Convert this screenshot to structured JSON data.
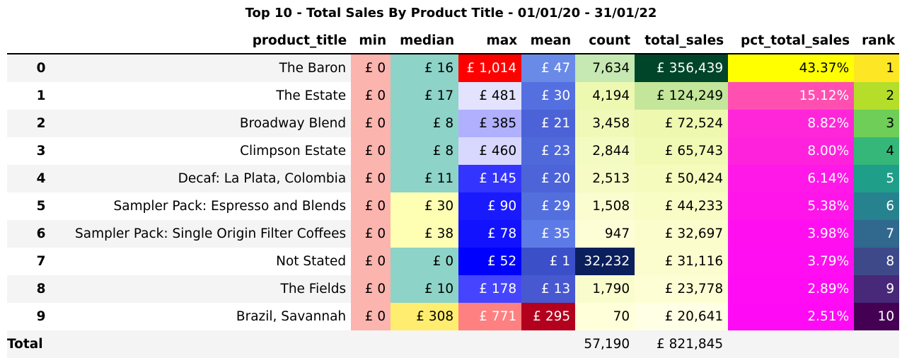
{
  "title": "Top 10 - Total Sales By Product Title - 01/01/20 - 31/01/22",
  "columns": [
    "product_title",
    "min",
    "median",
    "max",
    "mean",
    "count",
    "total_sales",
    "pct_total_sales",
    "rank"
  ],
  "rows": [
    {
      "idx": "0",
      "product_title": "The Baron",
      "min": "£ 0",
      "median": "£ 16",
      "max": "£ 1,014",
      "mean": "£ 47",
      "count": "7,634",
      "total_sales": "£ 356,439",
      "pct_total_sales": "43.37%",
      "rank": "1"
    },
    {
      "idx": "1",
      "product_title": "The Estate",
      "min": "£ 0",
      "median": "£ 17",
      "max": "£ 481",
      "mean": "£ 30",
      "count": "4,194",
      "total_sales": "£ 124,249",
      "pct_total_sales": "15.12%",
      "rank": "2"
    },
    {
      "idx": "2",
      "product_title": "Broadway Blend",
      "min": "£ 0",
      "median": "£ 8",
      "max": "£ 385",
      "mean": "£ 21",
      "count": "3,458",
      "total_sales": "£ 72,524",
      "pct_total_sales": "8.82%",
      "rank": "3"
    },
    {
      "idx": "3",
      "product_title": "Climpson Estate",
      "min": "£ 0",
      "median": "£ 8",
      "max": "£ 460",
      "mean": "£ 23",
      "count": "2,844",
      "total_sales": "£ 65,743",
      "pct_total_sales": "8.00%",
      "rank": "4"
    },
    {
      "idx": "4",
      "product_title": "Decaf: La Plata, Colombia",
      "min": "£ 0",
      "median": "£ 11",
      "max": "£ 145",
      "mean": "£ 20",
      "count": "2,513",
      "total_sales": "£ 50,424",
      "pct_total_sales": "6.14%",
      "rank": "5"
    },
    {
      "idx": "5",
      "product_title": "Sampler Pack: Espresso and Blends",
      "min": "£ 0",
      "median": "£ 30",
      "max": "£ 90",
      "mean": "£ 29",
      "count": "1,508",
      "total_sales": "£ 44,233",
      "pct_total_sales": "5.38%",
      "rank": "6"
    },
    {
      "idx": "6",
      "product_title": "Sampler Pack: Single Origin Filter Coffees",
      "min": "£ 0",
      "median": "£ 38",
      "max": "£ 78",
      "mean": "£ 35",
      "count": "947",
      "total_sales": "£ 32,697",
      "pct_total_sales": "3.98%",
      "rank": "7"
    },
    {
      "idx": "7",
      "product_title": "Not Stated",
      "min": "£ 0",
      "median": "£ 0",
      "max": "£ 52",
      "mean": "£ 1",
      "count": "32,232",
      "total_sales": "£ 31,116",
      "pct_total_sales": "3.79%",
      "rank": "8"
    },
    {
      "idx": "8",
      "product_title": "The Fields",
      "min": "£ 0",
      "median": "£ 10",
      "max": "£ 178",
      "mean": "£ 13",
      "count": "1,790",
      "total_sales": "£ 23,778",
      "pct_total_sales": "2.89%",
      "rank": "9"
    },
    {
      "idx": "9",
      "product_title": "Brazil, Savannah",
      "min": "£ 0",
      "median": "£ 308",
      "max": "£ 771",
      "mean": "£ 295",
      "count": "70",
      "total_sales": "£ 20,641",
      "pct_total_sales": "2.51%",
      "rank": "10"
    }
  ],
  "total": {
    "label": "Total",
    "count": "57,190",
    "total_sales": "£ 821,845"
  },
  "colors": {
    "min": [
      "#fbb4ae",
      "#fbb4ae",
      "#fbb4ae",
      "#fbb4ae",
      "#fbb4ae",
      "#fbb4ae",
      "#fbb4ae",
      "#fbb4ae",
      "#fbb4ae",
      "#fbb4ae"
    ],
    "median": [
      "#8dd3c7",
      "#8dd3c7",
      "#8dd3c7",
      "#8dd3c7",
      "#8dd3c7",
      "#ffffb3",
      "#ffffb3",
      "#8dd3c7",
      "#8dd3c7",
      "#ffed6f"
    ],
    "max": [
      "#ff0000",
      "#e3e3ff",
      "#b0b0ff",
      "#d8d8ff",
      "#3434ff",
      "#1a1aff",
      "#1212ff",
      "#0000ff",
      "#4545ff",
      "#ff8080"
    ],
    "mean": [
      "#6a8ae8",
      "#5470e0",
      "#4c63d8",
      "#4f69da",
      "#4c64d8",
      "#536fde",
      "#5d7be6",
      "#3a4fc8",
      "#4858d0",
      "#b2001d"
    ],
    "count": [
      "#c6e8b2",
      "#edf8b1",
      "#f0f9b8",
      "#f4fbc2",
      "#f6fbc5",
      "#fafdd0",
      "#fdfed6",
      "#0a1f5c",
      "#f9fccc",
      "#ffffd9"
    ],
    "total_sales": [
      "#004529",
      "#c3e69a",
      "#eef8ae",
      "#f1fab5",
      "#f5fbbd",
      "#f8fcc5",
      "#fbfdcc",
      "#fcfdcf",
      "#fefed4",
      "#ffffe5"
    ],
    "pct_total_sales": [
      "#ffff00",
      "#ff4fb0",
      "#ff26d9",
      "#ff22dd",
      "#ff18e7",
      "#ff15ea",
      "#ff0ff0",
      "#ff0ef1",
      "#ff0bf4",
      "#ff0af5"
    ],
    "rank": [
      "#fde725",
      "#b5de2b",
      "#6ece58",
      "#35b779",
      "#1f9e89",
      "#26828e",
      "#31688e",
      "#3e4989",
      "#482878",
      "#440154"
    ]
  },
  "white_text": {
    "max": [
      true,
      false,
      false,
      false,
      true,
      true,
      true,
      true,
      true,
      true
    ],
    "mean": [
      true,
      true,
      true,
      true,
      true,
      true,
      true,
      true,
      true,
      true
    ],
    "count": [
      false,
      false,
      false,
      false,
      false,
      false,
      false,
      true,
      false,
      false
    ],
    "total_sales": [
      true,
      false,
      false,
      false,
      false,
      false,
      false,
      false,
      false,
      false
    ],
    "pct_total_sales": [
      false,
      true,
      true,
      true,
      true,
      true,
      true,
      true,
      true,
      true
    ],
    "rank": [
      false,
      false,
      false,
      false,
      true,
      true,
      true,
      true,
      true,
      true
    ]
  }
}
